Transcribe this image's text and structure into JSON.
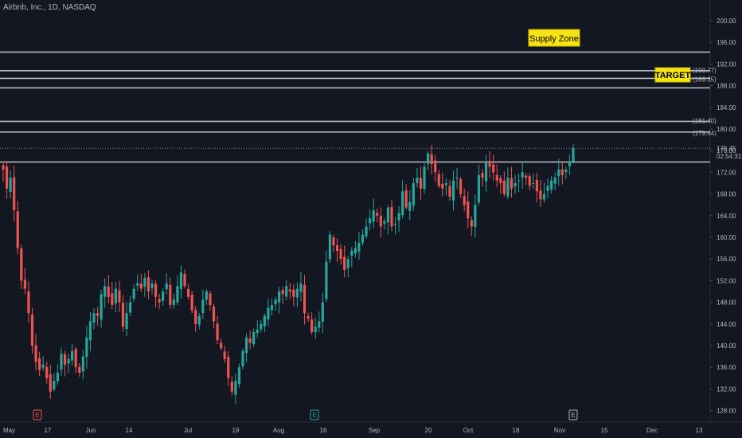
{
  "header": {
    "title": "Airbnb, Inc., 1D, NASDAQ"
  },
  "price_axis": {
    "ticks": [
      "200.00",
      "196.00",
      "192.00",
      "188.00",
      "184.00",
      "180.00",
      "176.00",
      "172.00",
      "168.00",
      "164.00",
      "160.00",
      "156.00",
      "152.00",
      "148.00",
      "144.00",
      "140.00",
      "136.00",
      "132.00",
      "128.00"
    ],
    "last_price": "176.45",
    "countdown": "02:54:31"
  },
  "time_axis": {
    "ticks": [
      "May",
      "17",
      "Jun",
      "14",
      "Jul",
      "19",
      "Aug",
      "16",
      "Sep",
      "20",
      "Oct",
      "18",
      "Nov",
      "15",
      "Dec",
      "13"
    ]
  },
  "annotations": {
    "supply_zone": "Supply Zone",
    "target": "TARGET",
    "level_labels": [
      "(190.77)",
      "(189.35)",
      "(181.40)",
      "(179.44)"
    ]
  },
  "earnings_markers": [
    "E",
    "E",
    "E"
  ],
  "colors": {
    "background": "#131722",
    "up": "#26a69a",
    "down": "#ef5350",
    "zone_line": "#b2b5be",
    "badge_yellow": "#f5e313",
    "earnings_red": "#ef5350",
    "earnings_green": "#26a69a",
    "earnings_grey": "#b2b5be"
  },
  "chart_data": {
    "type": "candlestick",
    "symbol": "Airbnb, Inc.",
    "interval": "1D",
    "exchange": "NASDAQ",
    "ylim": [
      126,
      202
    ],
    "last_close": 176.45,
    "horizontal_levels": [
      194.2,
      190.77,
      189.35,
      187.6,
      181.4,
      179.44,
      173.9
    ],
    "zones": [
      {
        "name": "Supply Zone",
        "from": 187.6,
        "to": 194.2
      },
      {
        "name": "TARGET",
        "from": 189.35,
        "to": 190.77
      },
      {
        "name": "zone-180",
        "from": 179.44,
        "to": 181.4
      }
    ],
    "dotted_level": 176.45,
    "closes": [
      172.5,
      169.0,
      171.0,
      165.0,
      158.0,
      152.0,
      150.5,
      146.0,
      140.0,
      137.0,
      135.5,
      136.5,
      134.0,
      131.5,
      133.5,
      135.0,
      138.5,
      136.5,
      137.5,
      139.0,
      136.0,
      135.0,
      138.0,
      141.5,
      144.5,
      146.0,
      145.5,
      149.5,
      151.0,
      149.0,
      147.5,
      150.5,
      148.0,
      143.5,
      146.0,
      148.0,
      150.5,
      151.5,
      150.5,
      152.5,
      150.0,
      151.5,
      149.0,
      148.0,
      150.0,
      151.5,
      147.5,
      148.5,
      151.0,
      153.5,
      151.0,
      149.0,
      146.5,
      144.0,
      145.5,
      148.5,
      150.0,
      147.5,
      144.5,
      141.0,
      139.5,
      137.5,
      134.0,
      131.5,
      133.5,
      136.0,
      139.0,
      141.5,
      140.5,
      142.5,
      143.0,
      144.0,
      145.5,
      147.0,
      147.5,
      148.5,
      150.0,
      149.5,
      151.0,
      150.0,
      149.0,
      150.5,
      151.5,
      146.0,
      145.0,
      142.5,
      143.5,
      144.5,
      148.0,
      155.5,
      160.5,
      158.5,
      157.5,
      156.0,
      154.0,
      156.0,
      157.5,
      158.0,
      159.0,
      160.5,
      162.0,
      163.5,
      165.0,
      164.0,
      162.0,
      163.0,
      165.5,
      162.0,
      162.5,
      164.5,
      168.5,
      165.5,
      166.5,
      170.0,
      171.0,
      169.0,
      173.0,
      175.5,
      173.5,
      172.0,
      169.5,
      169.0,
      170.0,
      167.5,
      170.5,
      171.0,
      168.0,
      166.0,
      163.5,
      162.0,
      166.0,
      171.5,
      171.0,
      174.0,
      173.0,
      172.0,
      170.5,
      170.0,
      168.0,
      171.0,
      169.0,
      170.0,
      170.5,
      172.0,
      171.0,
      169.5,
      170.0,
      168.5,
      167.0,
      168.0,
      169.5,
      170.5,
      171.0,
      172.5,
      171.5,
      172.5,
      174.0,
      176.45
    ]
  }
}
